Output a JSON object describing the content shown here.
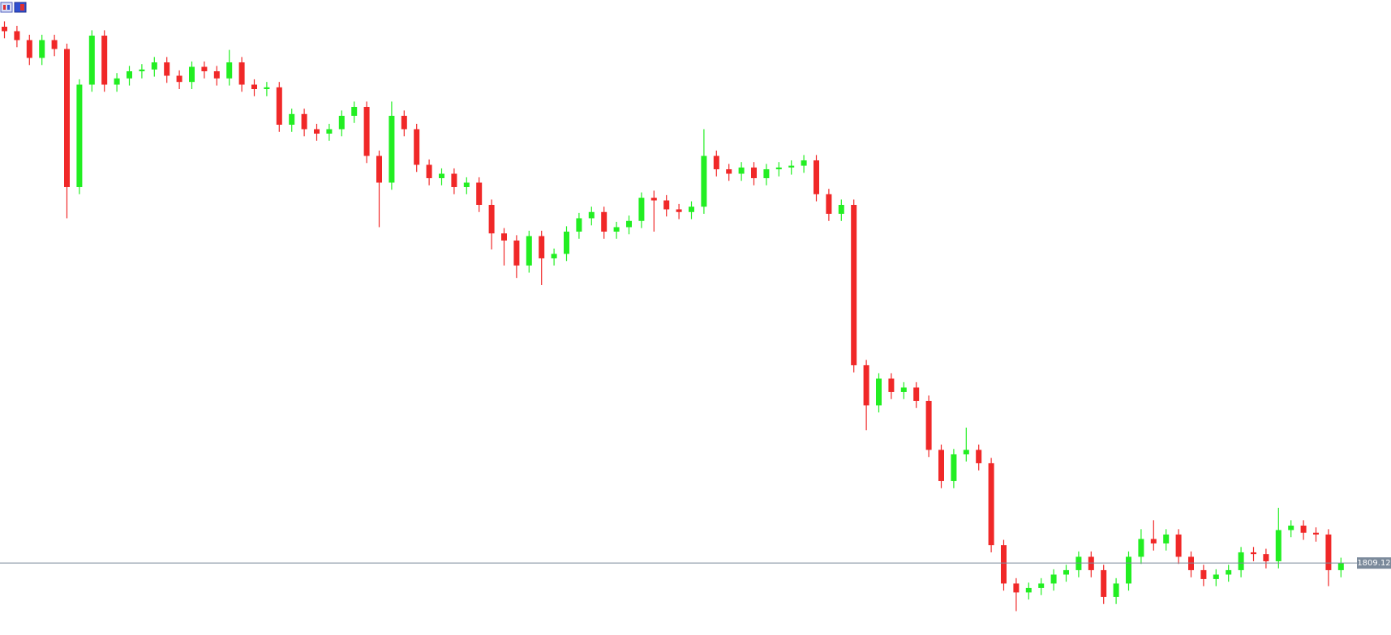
{
  "chart_data": {
    "type": "candlestick",
    "up_color": "#22ee22",
    "down_color": "#f02828",
    "current_price": 1809.12,
    "current_price_color": "#7b8a9b",
    "ylim": [
      1805.08,
      1840.72
    ],
    "open": [
      1839.22,
      1838.97,
      1838.47,
      1837.47,
      1838.47,
      1837.97,
      1830.22,
      1835.97,
      1838.72,
      1835.97,
      1836.32,
      1836.72,
      1836.82,
      1837.22,
      1836.47,
      1836.12,
      1836.97,
      1836.72,
      1836.32,
      1837.22,
      1835.97,
      1835.72,
      1835.82,
      1833.72,
      1834.32,
      1833.47,
      1833.22,
      1833.47,
      1834.22,
      1834.72,
      1831.97,
      1830.47,
      1834.22,
      1833.47,
      1831.47,
      1830.72,
      1830.97,
      1830.22,
      1830.47,
      1829.22,
      1827.62,
      1827.22,
      1825.82,
      1827.47,
      1826.22,
      1826.47,
      1827.72,
      1828.47,
      1828.82,
      1827.72,
      1827.97,
      1828.32,
      1829.62,
      1829.47,
      1828.97,
      1828.82,
      1829.12,
      1831.97,
      1831.22,
      1830.97,
      1831.32,
      1830.72,
      1831.22,
      1831.32,
      1831.42,
      1831.72,
      1829.82,
      1828.72,
      1829.22,
      1820.22,
      1817.97,
      1819.47,
      1818.72,
      1818.97,
      1818.22,
      1815.47,
      1813.72,
      1815.22,
      1815.47,
      1814.72,
      1810.12,
      1807.97,
      1807.47,
      1807.72,
      1807.97,
      1808.47,
      1808.72,
      1809.47,
      1808.72,
      1807.22,
      1807.97,
      1809.47,
      1810.47,
      1810.22,
      1810.72,
      1809.47,
      1808.72,
      1808.22,
      1808.47,
      1808.72,
      1809.72,
      1809.62,
      1809.22,
      1810.97,
      1811.22,
      1810.82,
      1810.72,
      1808.72
    ],
    "high": [
      1839.52,
      1839.27,
      1838.77,
      1838.77,
      1838.77,
      1838.27,
      1836.27,
      1839.02,
      1839.02,
      1836.62,
      1837.02,
      1837.12,
      1837.52,
      1837.52,
      1836.77,
      1837.27,
      1837.27,
      1837.02,
      1837.92,
      1837.52,
      1836.27,
      1836.12,
      1836.12,
      1834.62,
      1834.62,
      1833.77,
      1833.77,
      1834.52,
      1835.02,
      1835.02,
      1832.27,
      1835.02,
      1834.52,
      1833.77,
      1831.77,
      1831.27,
      1831.27,
      1830.77,
      1830.77,
      1829.52,
      1827.92,
      1827.52,
      1827.77,
      1827.77,
      1826.77,
      1828.02,
      1828.77,
      1829.12,
      1829.12,
      1828.27,
      1828.62,
      1829.92,
      1830.02,
      1829.77,
      1829.27,
      1829.42,
      1833.47,
      1832.27,
      1831.52,
      1831.62,
      1831.62,
      1831.52,
      1831.62,
      1831.72,
      1832.02,
      1832.02,
      1830.12,
      1829.52,
      1829.52,
      1820.52,
      1819.77,
      1819.77,
      1819.27,
      1819.27,
      1818.52,
      1815.77,
      1815.52,
      1816.72,
      1815.77,
      1815.02,
      1810.42,
      1808.27,
      1808.02,
      1808.27,
      1808.77,
      1809.02,
      1809.77,
      1809.77,
      1809.02,
      1808.27,
      1809.77,
      1811.02,
      1811.52,
      1811.02,
      1811.02,
      1809.77,
      1809.02,
      1808.77,
      1809.02,
      1810.02,
      1810.02,
      1809.92,
      1812.22,
      1811.52,
      1811.52,
      1811.12,
      1811.02,
      1809.42
    ],
    "low": [
      1838.57,
      1838.07,
      1837.07,
      1837.07,
      1837.57,
      1828.47,
      1829.82,
      1835.57,
      1835.57,
      1835.57,
      1835.92,
      1836.32,
      1836.42,
      1836.07,
      1835.72,
      1835.72,
      1836.32,
      1835.92,
      1835.92,
      1835.57,
      1835.32,
      1835.32,
      1833.32,
      1833.32,
      1833.07,
      1832.82,
      1832.82,
      1833.07,
      1833.82,
      1831.57,
      1827.97,
      1830.07,
      1833.07,
      1831.07,
      1830.32,
      1830.32,
      1829.82,
      1829.82,
      1828.82,
      1826.72,
      1825.82,
      1825.12,
      1825.42,
      1824.72,
      1825.82,
      1826.07,
      1827.32,
      1828.07,
      1827.32,
      1827.32,
      1827.57,
      1827.92,
      1827.72,
      1828.57,
      1828.42,
      1828.42,
      1828.72,
      1830.82,
      1830.57,
      1830.57,
      1830.32,
      1830.32,
      1830.82,
      1830.92,
      1831.02,
      1829.42,
      1828.32,
      1828.32,
      1819.82,
      1816.57,
      1817.57,
      1818.32,
      1818.32,
      1817.82,
      1815.07,
      1813.32,
      1813.32,
      1814.82,
      1814.32,
      1809.72,
      1807.57,
      1806.42,
      1807.07,
      1807.32,
      1807.57,
      1808.07,
      1808.32,
      1808.32,
      1806.82,
      1806.82,
      1807.57,
      1809.07,
      1809.82,
      1809.82,
      1809.07,
      1808.32,
      1807.82,
      1807.82,
      1808.07,
      1808.32,
      1809.22,
      1808.82,
      1808.82,
      1810.57,
      1810.42,
      1810.32,
      1807.82,
      1808.32
    ],
    "close": [
      1838.97,
      1838.47,
      1837.47,
      1838.47,
      1837.97,
      1830.22,
      1835.97,
      1838.72,
      1835.97,
      1836.32,
      1836.72,
      1836.82,
      1837.22,
      1836.47,
      1836.12,
      1836.97,
      1836.72,
      1836.32,
      1837.22,
      1835.97,
      1835.72,
      1835.82,
      1833.72,
      1834.32,
      1833.47,
      1833.22,
      1833.47,
      1834.22,
      1834.72,
      1831.97,
      1830.47,
      1834.22,
      1833.47,
      1831.47,
      1830.72,
      1830.97,
      1830.22,
      1830.47,
      1829.22,
      1827.62,
      1827.22,
      1825.82,
      1827.47,
      1826.22,
      1826.47,
      1827.72,
      1828.47,
      1828.82,
      1827.72,
      1827.97,
      1828.32,
      1829.62,
      1829.47,
      1828.97,
      1828.82,
      1829.12,
      1831.97,
      1831.22,
      1830.97,
      1831.32,
      1830.72,
      1831.22,
      1831.32,
      1831.42,
      1831.72,
      1829.82,
      1828.72,
      1829.22,
      1820.22,
      1817.97,
      1819.47,
      1818.72,
      1818.97,
      1818.22,
      1815.47,
      1813.72,
      1815.22,
      1815.47,
      1814.72,
      1810.12,
      1807.97,
      1807.47,
      1807.72,
      1807.97,
      1808.47,
      1808.72,
      1809.47,
      1808.72,
      1807.22,
      1807.97,
      1809.47,
      1810.47,
      1810.22,
      1810.72,
      1809.47,
      1808.72,
      1808.22,
      1808.47,
      1808.72,
      1809.72,
      1809.62,
      1809.22,
      1810.97,
      1811.22,
      1810.82,
      1810.72,
      1808.72,
      1809.12
    ]
  }
}
